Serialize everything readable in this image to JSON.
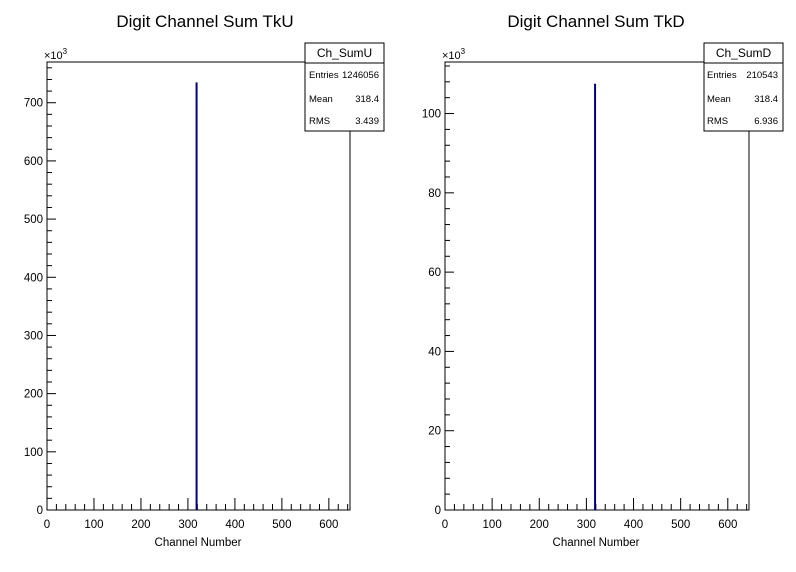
{
  "chart_data": [
    {
      "type": "bar",
      "title": "Digit Channel Sum TkU",
      "xlabel": "Channel Number",
      "ylabel": "",
      "y_exponent_label": "×10",
      "y_exponent_power": "3",
      "xlim": [
        0,
        645
      ],
      "ylim": [
        0,
        770
      ],
      "x_ticks": [
        0,
        100,
        200,
        300,
        400,
        500,
        600
      ],
      "y_ticks": [
        0,
        100,
        200,
        300,
        400,
        500,
        600,
        700
      ],
      "bins": [
        {
          "x": 318.4,
          "value": 735
        }
      ],
      "line_color": "#000080",
      "stats": {
        "name": "Ch_SumU",
        "rows": [
          {
            "label": "Entries",
            "value": "1246056"
          },
          {
            "label": "Mean",
            "value": "318.4"
          },
          {
            "label": "RMS",
            "value": "3.439"
          }
        ]
      }
    },
    {
      "type": "bar",
      "title": "Digit Channel Sum TkD",
      "xlabel": "Channel Number",
      "ylabel": "",
      "y_exponent_label": "×10",
      "y_exponent_power": "3",
      "xlim": [
        0,
        645
      ],
      "ylim": [
        0,
        113
      ],
      "x_ticks": [
        0,
        100,
        200,
        300,
        400,
        500,
        600
      ],
      "y_ticks": [
        0,
        20,
        40,
        60,
        80,
        100
      ],
      "bins": [
        {
          "x": 318.4,
          "value": 107.5
        }
      ],
      "line_color": "#000080",
      "stats": {
        "name": "Ch_SumD",
        "rows": [
          {
            "label": "Entries",
            "value": "210543"
          },
          {
            "label": "Mean",
            "value": "318.4"
          },
          {
            "label": "RMS",
            "value": "6.936"
          }
        ]
      }
    }
  ]
}
